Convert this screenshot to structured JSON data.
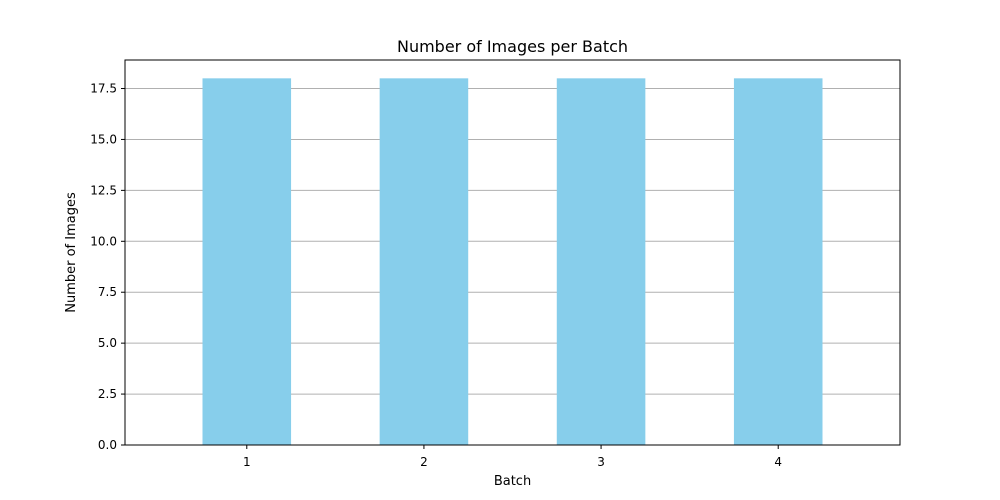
{
  "chart_data": {
    "type": "bar",
    "title": "Number of Images per Batch",
    "xlabel": "Batch",
    "ylabel": "Number of Images",
    "categories": [
      "1",
      "2",
      "3",
      "4"
    ],
    "values": [
      18,
      18,
      18,
      18
    ],
    "ylim": [
      0,
      18.9
    ],
    "yticks": [
      "0.0",
      "2.5",
      "5.0",
      "7.5",
      "10.0",
      "12.5",
      "15.0",
      "17.5"
    ],
    "bar_color": "#87CEEB",
    "grid": "y-axis only",
    "legend": "none"
  }
}
